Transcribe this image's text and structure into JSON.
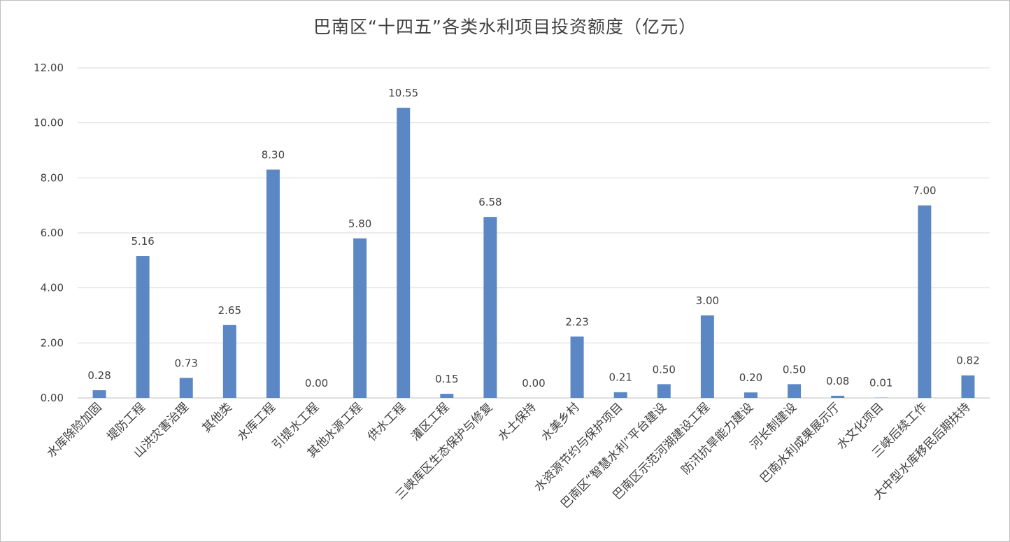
{
  "chart_data": {
    "type": "bar",
    "title": "巴南区“十四五”各类水利项目投资额度（亿元）",
    "xlabel": "",
    "ylabel": "",
    "ylim": [
      0,
      12
    ],
    "yticks": [
      "0.00",
      "2.00",
      "4.00",
      "6.00",
      "8.00",
      "10.00",
      "12.00"
    ],
    "grid": true,
    "legend": "none",
    "bar_color": "#5b88c4",
    "categories": [
      "水库除险加固",
      "堤防工程",
      "山洪灾害治理",
      "其他类",
      "水库工程",
      "引提水工程",
      "其他水源工程",
      "供水工程",
      "灌区工程",
      "三峡库区生态保护与修复",
      "水土保持",
      "水美乡村",
      "水资源节约与保护项目",
      "巴南区“智慧水利”平台建设",
      "巴南区示范河湖建设工程",
      "防汛抗旱能力建设",
      "河长制建设",
      "巴南水利成果展示厅",
      "水文化项目",
      "三峡后续工作",
      "大中型水库移民后期扶持"
    ],
    "values": [
      0.28,
      5.16,
      0.73,
      2.65,
      8.3,
      0.0,
      5.8,
      10.55,
      0.15,
      6.58,
      0.0,
      2.23,
      0.21,
      0.5,
      3.0,
      0.2,
      0.5,
      0.08,
      0.01,
      7.0,
      0.82
    ],
    "value_labels": [
      "0.28",
      "5.16",
      "0.73",
      "2.65",
      "8.30",
      "0.00",
      "5.80",
      "10.55",
      "0.15",
      "6.58",
      "0.00",
      "2.23",
      "0.21",
      "0.50",
      "3.00",
      "0.20",
      "0.50",
      "0.08",
      "0.01",
      "7.00",
      "0.82"
    ]
  }
}
